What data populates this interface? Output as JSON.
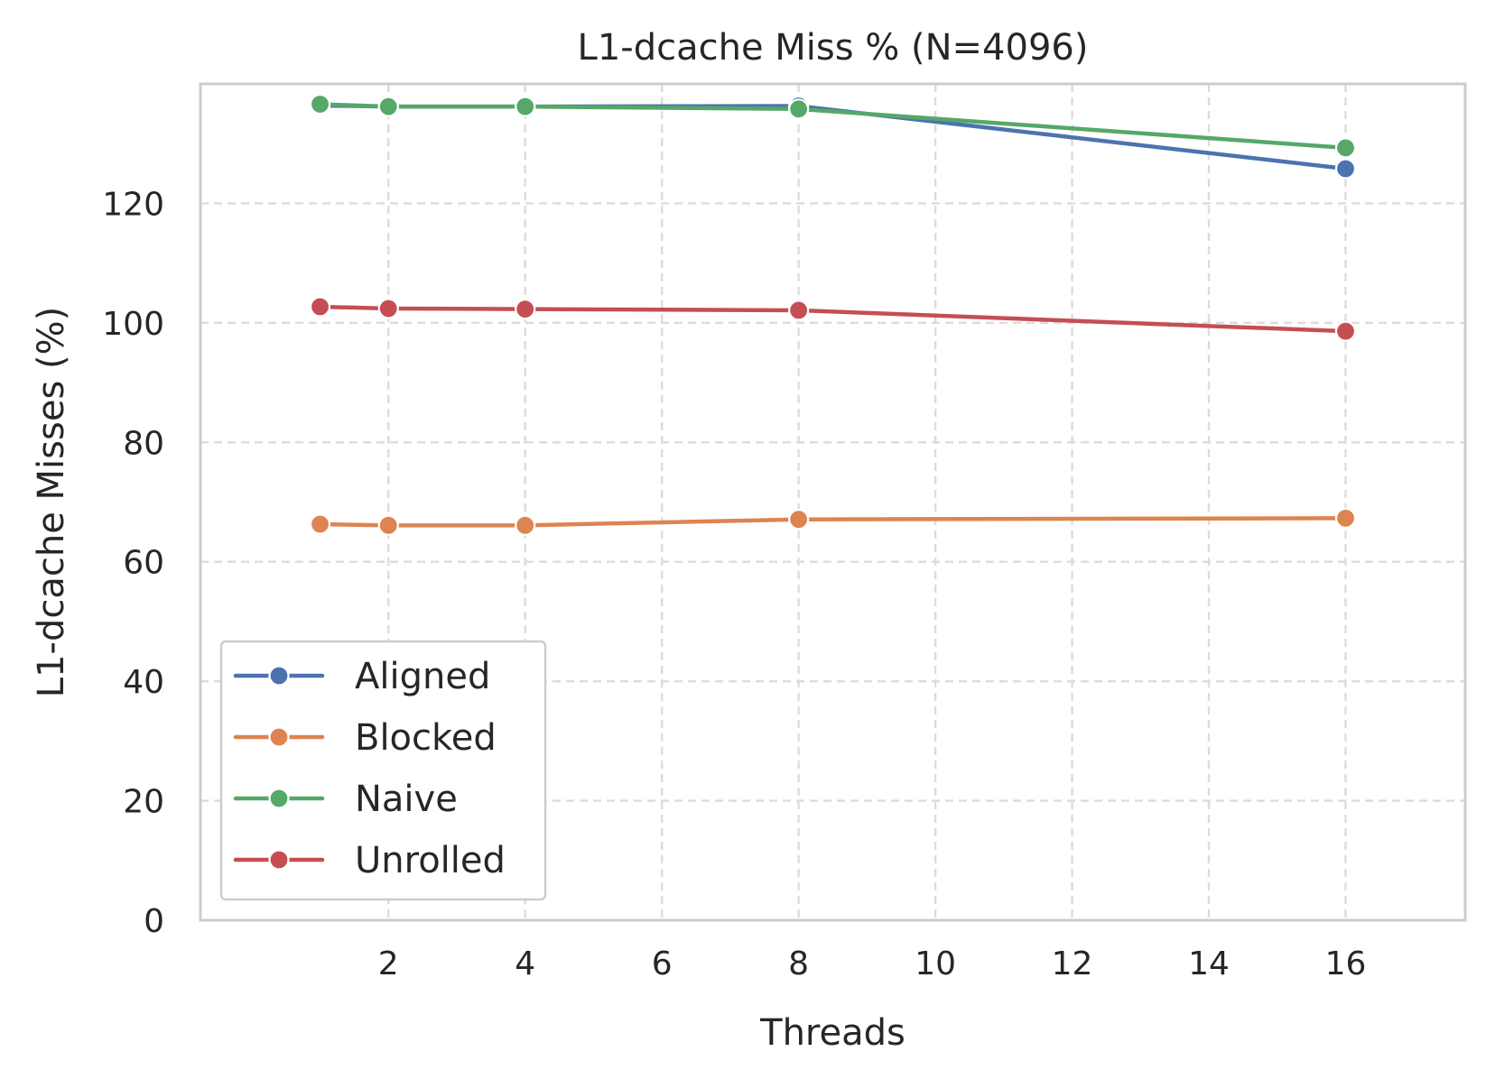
{
  "chart_data": {
    "type": "line",
    "title": "L1-dcache Miss % (N=4096)",
    "xlabel": "Threads",
    "ylabel": "L1-dcache Misses (%)",
    "x": [
      1,
      2,
      4,
      8,
      16
    ],
    "xlim": [
      -0.75,
      17.75
    ],
    "ylim": [
      0,
      140
    ],
    "xticks": [
      2,
      4,
      6,
      8,
      10,
      12,
      14,
      16
    ],
    "yticks": [
      0,
      20,
      40,
      60,
      80,
      100,
      120
    ],
    "grid": true,
    "grid_style": "dashed",
    "legend_position": "lower-left",
    "series": [
      {
        "name": "Aligned",
        "color": "#4c72b0",
        "values": [
          136.4,
          136.2,
          136.2,
          136.3,
          125.8
        ]
      },
      {
        "name": "Blocked",
        "color": "#dd8452",
        "values": [
          66.3,
          66.1,
          66.1,
          67.1,
          67.3
        ]
      },
      {
        "name": "Naive",
        "color": "#55a868",
        "values": [
          136.6,
          136.2,
          136.2,
          135.8,
          129.3
        ]
      },
      {
        "name": "Unrolled",
        "color": "#c44e52",
        "values": [
          102.7,
          102.4,
          102.3,
          102.1,
          98.6
        ]
      }
    ]
  }
}
